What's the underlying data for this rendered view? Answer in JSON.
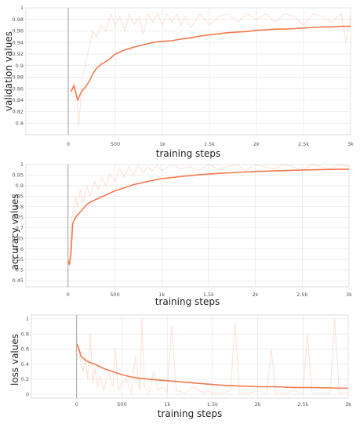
{
  "chart_data": [
    {
      "type": "line",
      "title": "",
      "xlabel": "training steps",
      "ylabel": "validation values",
      "xlim": [
        -450,
        3000
      ],
      "ylim": [
        0.78,
        1.0
      ],
      "x_ticks": [
        0,
        500,
        1000,
        1500,
        2000,
        2500,
        3000
      ],
      "x_tick_labels": [
        "0",
        "500",
        "1k",
        "1.5k",
        "2k",
        "2.5k",
        "3k"
      ],
      "y_ticks": [
        0.8,
        0.82,
        0.84,
        0.86,
        0.88,
        0.9,
        0.92,
        0.94,
        0.96,
        0.98,
        1
      ],
      "y_tick_labels": [
        "0.8",
        "0.82",
        "0.84",
        "0.86",
        "0.88",
        "0.9",
        "0.92",
        "0.94",
        "0.96",
        "0.98",
        "1"
      ],
      "colors": {
        "smoothed": "#f4794e",
        "raw": "#f9c8b2"
      },
      "series": [
        {
          "style": "raw",
          "x": [
            30,
            60,
            90,
            110,
            130,
            150,
            180,
            220,
            260,
            300,
            350,
            400,
            450,
            500,
            550,
            600,
            650,
            700,
            750,
            800,
            850,
            900,
            950,
            1000,
            1050,
            1100,
            1150,
            1200,
            1250,
            1300,
            1400,
            1500,
            1600,
            1700,
            1800,
            1900,
            2000,
            2100,
            2200,
            2300,
            2400,
            2500,
            2600,
            2700,
            2800,
            2900,
            2950,
            3000
          ],
          "y": [
            0.85,
            0.87,
            0.85,
            0.795,
            0.835,
            0.88,
            0.9,
            0.93,
            0.96,
            0.95,
            0.97,
            0.96,
            0.99,
            0.97,
            0.985,
            0.96,
            0.99,
            0.97,
            0.985,
            0.955,
            0.99,
            0.975,
            0.99,
            0.97,
            0.99,
            0.975,
            0.99,
            0.97,
            0.985,
            0.965,
            0.99,
            0.97,
            0.985,
            0.99,
            0.975,
            0.99,
            0.98,
            0.99,
            0.975,
            0.99,
            0.985,
            0.97,
            0.99,
            0.985,
            0.975,
            0.99,
            0.94,
            0.985
          ]
        },
        {
          "style": "smoothed",
          "x": [
            30,
            60,
            100,
            140,
            180,
            220,
            260,
            300,
            350,
            400,
            450,
            500,
            600,
            700,
            800,
            900,
            1000,
            1100,
            1200,
            1300,
            1400,
            1500,
            1600,
            1700,
            1800,
            1900,
            2000,
            2100,
            2200,
            2300,
            2400,
            2500,
            2600,
            2700,
            2800,
            2900,
            3000
          ],
          "y": [
            0.855,
            0.865,
            0.84,
            0.855,
            0.862,
            0.872,
            0.885,
            0.895,
            0.902,
            0.907,
            0.913,
            0.92,
            0.927,
            0.932,
            0.936,
            0.94,
            0.942,
            0.943,
            0.946,
            0.948,
            0.951,
            0.953,
            0.955,
            0.957,
            0.958,
            0.959,
            0.961,
            0.962,
            0.963,
            0.963,
            0.964,
            0.965,
            0.966,
            0.967,
            0.967,
            0.968,
            0.968
          ]
        }
      ]
    },
    {
      "type": "line",
      "title": "",
      "xlabel": "training steps",
      "ylabel": "accuracy values",
      "xlim": [
        -450,
        3000
      ],
      "ylim": [
        0.42,
        1.0
      ],
      "x_ticks": [
        0,
        500,
        1000,
        1500,
        2000,
        2500,
        3000
      ],
      "x_tick_labels": [
        "0",
        "500",
        "1k",
        "1.5k",
        "2k",
        "2.5k",
        "3k"
      ],
      "y_ticks": [
        0.45,
        0.5,
        0.55,
        0.6,
        0.65,
        0.7,
        0.75,
        0.8,
        0.85,
        0.9,
        0.95,
        1
      ],
      "y_tick_labels": [
        "0.45",
        "0.5",
        "0.55",
        "0.6",
        "0.65",
        "0.7",
        "0.75",
        "0.8",
        "0.85",
        "0.9",
        "0.95",
        "1"
      ],
      "colors": {
        "smoothed": "#f4794e",
        "raw": "#f9c8b2"
      },
      "series": [
        {
          "style": "raw",
          "x": [
            0,
            20,
            40,
            60,
            80,
            100,
            130,
            160,
            200,
            240,
            280,
            320,
            360,
            400,
            450,
            500,
            550,
            600,
            650,
            700,
            750,
            800,
            850,
            900,
            950,
            1000,
            1100,
            1200,
            1300,
            1400,
            1500,
            1600,
            1700,
            1800,
            1900,
            2000,
            2100,
            2200,
            2300,
            2400,
            2500,
            2600,
            2700,
            2800,
            2900,
            3000
          ],
          "y": [
            0.54,
            0.56,
            0.75,
            0.78,
            0.85,
            0.8,
            0.88,
            0.82,
            0.9,
            0.85,
            0.92,
            0.88,
            0.94,
            0.9,
            0.96,
            0.92,
            0.98,
            0.94,
            0.99,
            0.95,
            1.0,
            0.96,
            0.99,
            0.97,
            1.0,
            0.97,
            1.0,
            0.98,
            0.99,
            0.97,
            1.0,
            0.98,
            0.99,
            1.0,
            0.97,
            1.0,
            0.99,
            0.98,
            1.0,
            0.99,
            0.97,
            1.0,
            0.99,
            0.98,
            1.0,
            0.99
          ]
        },
        {
          "style": "smoothed",
          "x": [
            0,
            15,
            30,
            50,
            80,
            120,
            160,
            200,
            250,
            300,
            350,
            400,
            450,
            500,
            600,
            700,
            800,
            900,
            1000,
            1200,
            1400,
            1600,
            1800,
            2000,
            2200,
            2400,
            2600,
            2800,
            3000
          ],
          "y": [
            0.545,
            0.525,
            0.57,
            0.72,
            0.75,
            0.77,
            0.79,
            0.81,
            0.825,
            0.835,
            0.845,
            0.855,
            0.865,
            0.875,
            0.89,
            0.905,
            0.915,
            0.925,
            0.933,
            0.943,
            0.952,
            0.958,
            0.963,
            0.967,
            0.97,
            0.973,
            0.975,
            0.977,
            0.978
          ]
        }
      ]
    },
    {
      "type": "line",
      "title": "",
      "xlabel": "training steps",
      "ylabel": "loss values",
      "xlim": [
        -500,
        3000
      ],
      "ylim": [
        -0.05,
        1.05
      ],
      "x_ticks": [
        0,
        500,
        1000,
        1500,
        2000,
        2500,
        3000
      ],
      "x_tick_labels": [
        "0",
        "500",
        "1k",
        "1.5k",
        "2k",
        "2.5k",
        "3k"
      ],
      "y_ticks": [
        0,
        0.2,
        0.4,
        0.6,
        0.8,
        1
      ],
      "y_tick_labels": [
        "0",
        "0.2",
        "0.4",
        "0.6",
        "0.8",
        "1"
      ],
      "colors": {
        "smoothed": "#f4794e",
        "raw": "#f9c8b2"
      },
      "series": [
        {
          "style": "raw",
          "x": [
            0,
            20,
            40,
            70,
            100,
            120,
            150,
            180,
            200,
            230,
            260,
            300,
            350,
            400,
            430,
            460,
            500,
            550,
            600,
            650,
            700,
            720,
            750,
            800,
            850,
            900,
            950,
            1000,
            1050,
            1100,
            1200,
            1300,
            1400,
            1450,
            1500,
            1600,
            1700,
            1750,
            1800,
            1900,
            2000,
            2100,
            2150,
            2200,
            2300,
            2400,
            2500,
            2550,
            2600,
            2700,
            2800,
            2850,
            2900,
            3000
          ],
          "y": [
            0.7,
            0.6,
            0.45,
            0.3,
            0.5,
            0.2,
            0.8,
            0.15,
            0.35,
            0.1,
            0.25,
            0.05,
            0.3,
            0.1,
            0.6,
            0.05,
            0.15,
            0.2,
            0.02,
            0.5,
            0.05,
            1.0,
            0.1,
            0.02,
            0.3,
            0.05,
            0.1,
            0.02,
            0.9,
            0.05,
            0.02,
            0.1,
            0.01,
            0.05,
            0.02,
            0.01,
            0.05,
            0.95,
            0.02,
            0.01,
            0.05,
            0.01,
            0.6,
            0.02,
            0.01,
            0.05,
            0.01,
            0.8,
            0.02,
            0.01,
            0.02,
            1.0,
            0.01,
            0.02
          ]
        },
        {
          "style": "smoothed",
          "x": [
            0,
            20,
            50,
            100,
            150,
            200,
            250,
            300,
            400,
            500,
            600,
            700,
            800,
            900,
            1000,
            1100,
            1200,
            1400,
            1600,
            1800,
            2000,
            2200,
            2400,
            2600,
            2800,
            3000
          ],
          "y": [
            0.67,
            0.62,
            0.5,
            0.45,
            0.42,
            0.4,
            0.37,
            0.34,
            0.3,
            0.26,
            0.23,
            0.21,
            0.2,
            0.19,
            0.18,
            0.17,
            0.16,
            0.14,
            0.12,
            0.11,
            0.1,
            0.1,
            0.09,
            0.09,
            0.085,
            0.08
          ]
        }
      ]
    }
  ]
}
